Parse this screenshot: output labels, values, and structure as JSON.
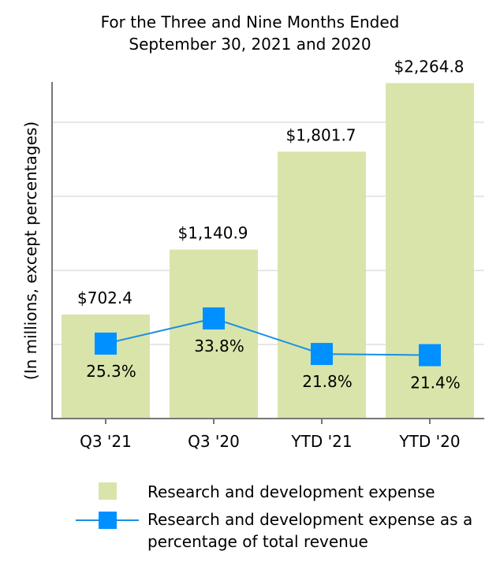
{
  "chart_data": {
    "type": "bar",
    "title_lines": [
      "For the Three and Nine Months Ended",
      "September 30, 2021 and 2020"
    ],
    "ylabel": "(In millions, except percentages)",
    "categories": [
      "Q3 '21",
      "Q3 '20",
      "YTD '21",
      "YTD '20"
    ],
    "series": [
      {
        "name": "Research and development expense",
        "kind": "bar",
        "values": [
          702.4,
          1140.9,
          1801.7,
          2264.8
        ],
        "labels": [
          "$702.4",
          "$1,140.9",
          "$1,801.7",
          "$2,264.8"
        ],
        "color": "#d9e4aa"
      },
      {
        "name": "Research and development expense as a percentage of total revenue",
        "kind": "line",
        "values": [
          25.3,
          33.8,
          21.8,
          21.4
        ],
        "labels": [
          "25.3%",
          "33.8%",
          "21.8%",
          "21.4%"
        ],
        "color": "#0090ff",
        "line_color": "#1a8fe3"
      }
    ],
    "ylim": [
      0,
      2400
    ],
    "gridlines": [
      500,
      1000,
      1500,
      2000
    ],
    "percent_scale_per_unit": 20,
    "grid": true,
    "legend": {
      "position": "bottom",
      "items": [
        {
          "line1": "Research and development expense"
        },
        {
          "line1": "Research and development expense as a",
          "line2": "percentage of total revenue"
        }
      ]
    }
  }
}
